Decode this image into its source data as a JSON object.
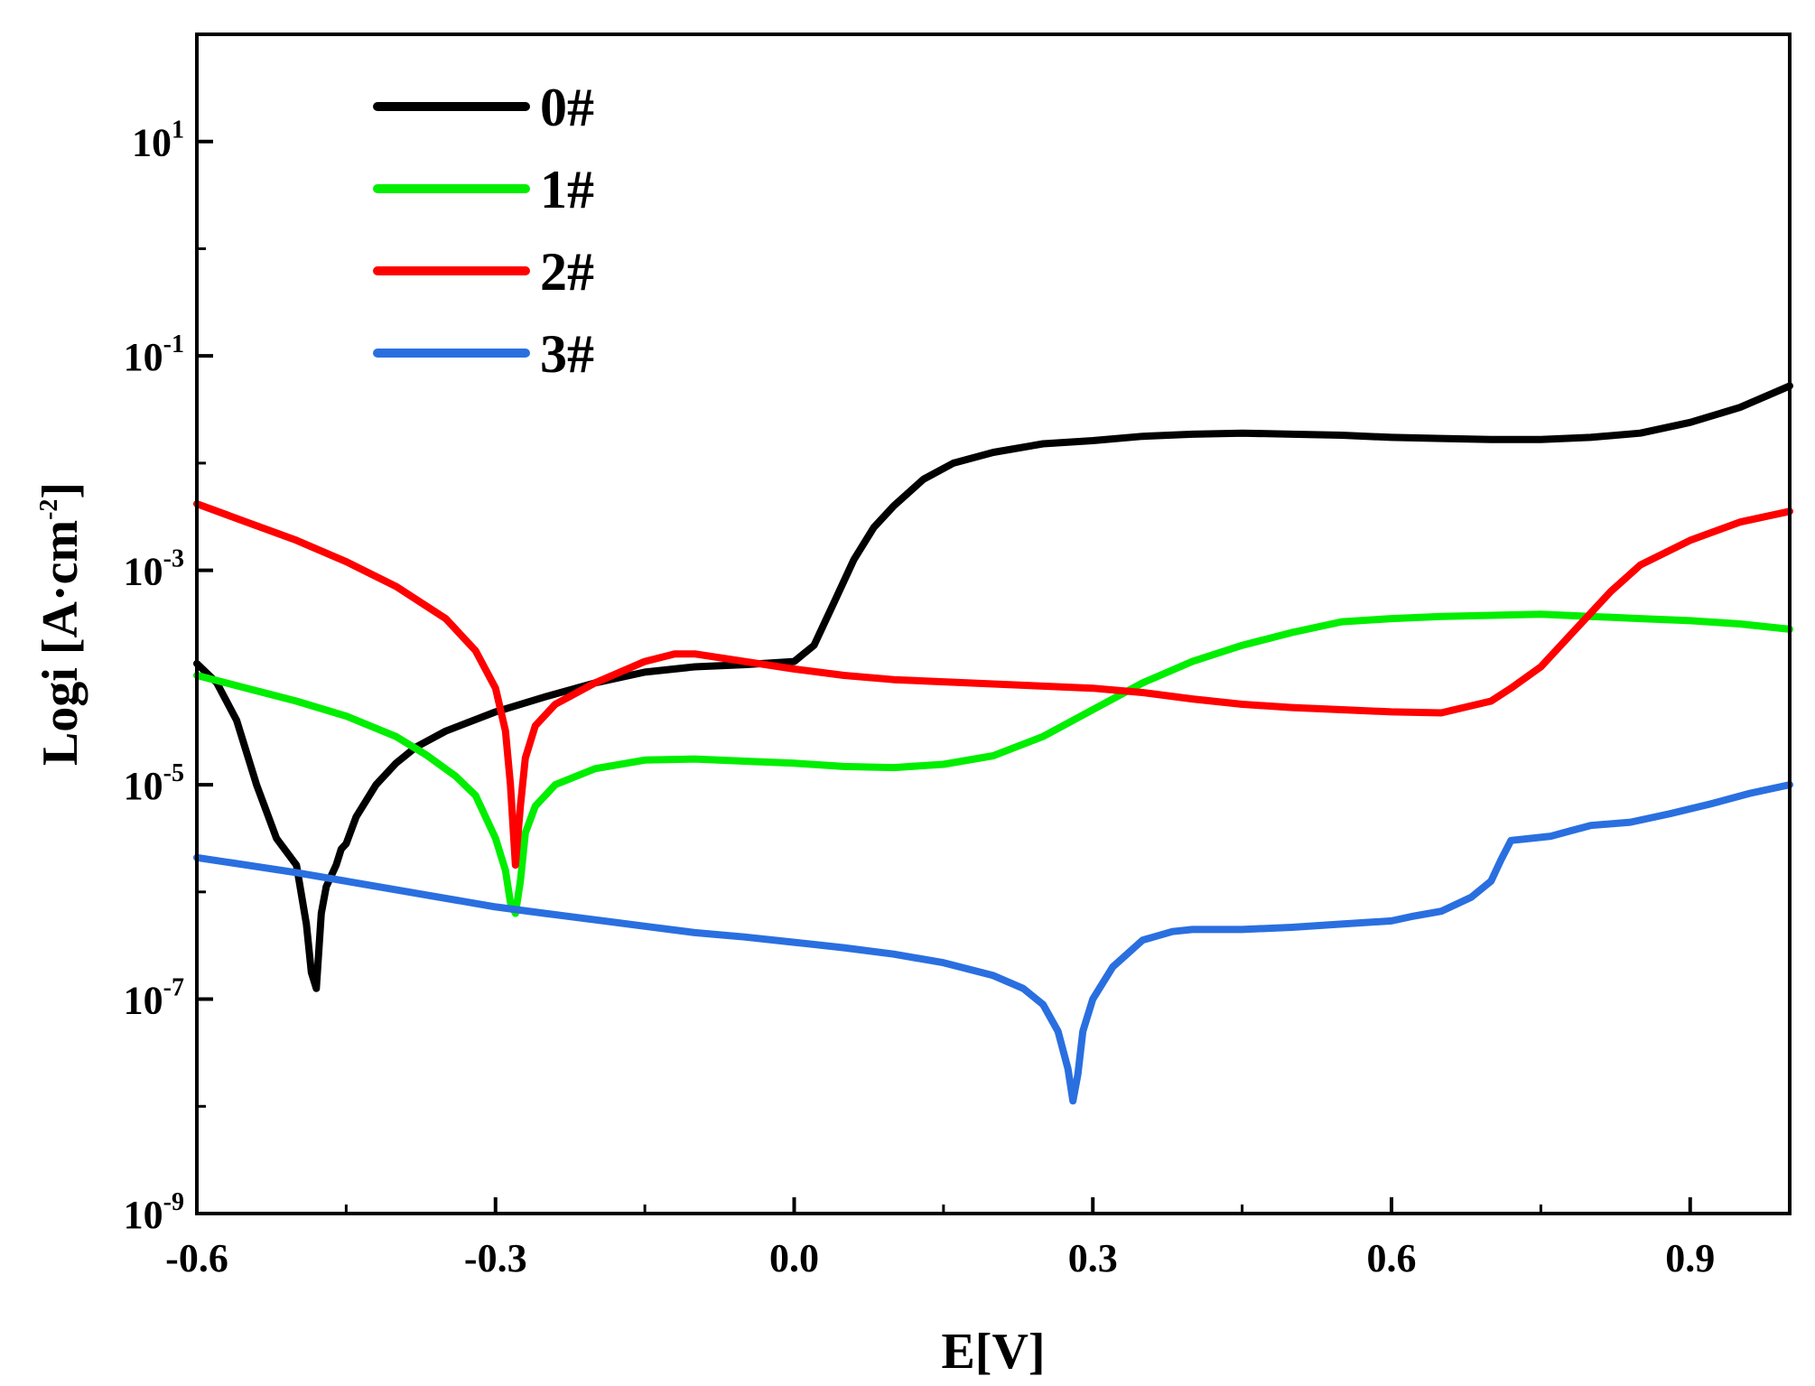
{
  "chart_data": {
    "type": "line",
    "title": "",
    "xlabel": "E[V]",
    "ylabel": "Logi [A·cm",
    "ylabel_exponent": "-2",
    "ylabel_suffix": "]",
    "xlim": [
      -0.6,
      1.0
    ],
    "ylim_log10": [
      -9,
      2
    ],
    "y_scale": "log",
    "grid": false,
    "legend_position": "top-left",
    "x_ticks": [
      {
        "value": -0.6,
        "label": "-0.6"
      },
      {
        "value": -0.3,
        "label": "-0.3"
      },
      {
        "value": 0.0,
        "label": "0.0"
      },
      {
        "value": 0.3,
        "label": "0.3"
      },
      {
        "value": 0.6,
        "label": "0.6"
      },
      {
        "value": 0.9,
        "label": "0.9"
      }
    ],
    "y_ticks": [
      {
        "exp": 1,
        "base": "10",
        "exponent": "1"
      },
      {
        "exp": -1,
        "base": "10",
        "exponent": "-1"
      },
      {
        "exp": -3,
        "base": "10",
        "exponent": "-3"
      },
      {
        "exp": -5,
        "base": "10",
        "exponent": "-5"
      },
      {
        "exp": -7,
        "base": "10",
        "exponent": "-7"
      },
      {
        "exp": -9,
        "base": "10",
        "exponent": "-9"
      }
    ],
    "series": [
      {
        "name": "0#",
        "color": "#000000",
        "points": [
          [
            -0.6,
            -3.87
          ],
          [
            -0.58,
            -4.05
          ],
          [
            -0.56,
            -4.4
          ],
          [
            -0.54,
            -5.0
          ],
          [
            -0.52,
            -5.5
          ],
          [
            -0.5,
            -5.75
          ],
          [
            -0.49,
            -6.3
          ],
          [
            -0.485,
            -6.75
          ],
          [
            -0.48,
            -6.9
          ],
          [
            -0.475,
            -6.2
          ],
          [
            -0.47,
            -5.95
          ],
          [
            -0.46,
            -5.75
          ],
          [
            -0.455,
            -5.6
          ],
          [
            -0.45,
            -5.55
          ],
          [
            -0.44,
            -5.3
          ],
          [
            -0.42,
            -5.0
          ],
          [
            -0.4,
            -4.8
          ],
          [
            -0.38,
            -4.65
          ],
          [
            -0.35,
            -4.5
          ],
          [
            -0.3,
            -4.32
          ],
          [
            -0.25,
            -4.18
          ],
          [
            -0.2,
            -4.05
          ],
          [
            -0.15,
            -3.95
          ],
          [
            -0.1,
            -3.9
          ],
          [
            -0.05,
            -3.88
          ],
          [
            0.0,
            -3.85
          ],
          [
            0.02,
            -3.7
          ],
          [
            0.04,
            -3.3
          ],
          [
            0.06,
            -2.9
          ],
          [
            0.08,
            -2.6
          ],
          [
            0.1,
            -2.4
          ],
          [
            0.13,
            -2.15
          ],
          [
            0.16,
            -2.0
          ],
          [
            0.2,
            -1.9
          ],
          [
            0.25,
            -1.82
          ],
          [
            0.3,
            -1.79
          ],
          [
            0.35,
            -1.75
          ],
          [
            0.4,
            -1.73
          ],
          [
            0.45,
            -1.72
          ],
          [
            0.5,
            -1.73
          ],
          [
            0.55,
            -1.74
          ],
          [
            0.6,
            -1.76
          ],
          [
            0.65,
            -1.77
          ],
          [
            0.7,
            -1.78
          ],
          [
            0.75,
            -1.78
          ],
          [
            0.8,
            -1.76
          ],
          [
            0.85,
            -1.72
          ],
          [
            0.9,
            -1.62
          ],
          [
            0.95,
            -1.48
          ],
          [
            1.0,
            -1.28
          ]
        ]
      },
      {
        "name": "1#",
        "color": "#00ee00",
        "points": [
          [
            -0.6,
            -3.98
          ],
          [
            -0.55,
            -4.1
          ],
          [
            -0.5,
            -4.22
          ],
          [
            -0.45,
            -4.36
          ],
          [
            -0.4,
            -4.55
          ],
          [
            -0.37,
            -4.72
          ],
          [
            -0.34,
            -4.92
          ],
          [
            -0.32,
            -5.1
          ],
          [
            -0.3,
            -5.5
          ],
          [
            -0.29,
            -5.8
          ],
          [
            -0.285,
            -6.1
          ],
          [
            -0.28,
            -6.2
          ],
          [
            -0.275,
            -5.9
          ],
          [
            -0.27,
            -5.45
          ],
          [
            -0.26,
            -5.2
          ],
          [
            -0.24,
            -5.0
          ],
          [
            -0.2,
            -4.85
          ],
          [
            -0.15,
            -4.77
          ],
          [
            -0.1,
            -4.76
          ],
          [
            -0.05,
            -4.78
          ],
          [
            0.0,
            -4.8
          ],
          [
            0.05,
            -4.83
          ],
          [
            0.1,
            -4.84
          ],
          [
            0.15,
            -4.81
          ],
          [
            0.2,
            -4.73
          ],
          [
            0.25,
            -4.55
          ],
          [
            0.3,
            -4.3
          ],
          [
            0.35,
            -4.05
          ],
          [
            0.4,
            -3.85
          ],
          [
            0.45,
            -3.7
          ],
          [
            0.5,
            -3.58
          ],
          [
            0.55,
            -3.48
          ],
          [
            0.6,
            -3.45
          ],
          [
            0.65,
            -3.43
          ],
          [
            0.7,
            -3.42
          ],
          [
            0.75,
            -3.41
          ],
          [
            0.8,
            -3.43
          ],
          [
            0.85,
            -3.45
          ],
          [
            0.9,
            -3.47
          ],
          [
            0.95,
            -3.5
          ],
          [
            1.0,
            -3.55
          ]
        ]
      },
      {
        "name": "2#",
        "color": "#ff0000",
        "points": [
          [
            -0.6,
            -2.38
          ],
          [
            -0.55,
            -2.55
          ],
          [
            -0.5,
            -2.72
          ],
          [
            -0.45,
            -2.92
          ],
          [
            -0.4,
            -3.15
          ],
          [
            -0.35,
            -3.45
          ],
          [
            -0.32,
            -3.75
          ],
          [
            -0.3,
            -4.1
          ],
          [
            -0.29,
            -4.5
          ],
          [
            -0.285,
            -5.0
          ],
          [
            -0.28,
            -5.75
          ],
          [
            -0.275,
            -5.2
          ],
          [
            -0.27,
            -4.75
          ],
          [
            -0.26,
            -4.45
          ],
          [
            -0.24,
            -4.25
          ],
          [
            -0.2,
            -4.05
          ],
          [
            -0.15,
            -3.85
          ],
          [
            -0.12,
            -3.78
          ],
          [
            -0.1,
            -3.78
          ],
          [
            -0.05,
            -3.85
          ],
          [
            0.0,
            -3.92
          ],
          [
            0.05,
            -3.98
          ],
          [
            0.1,
            -4.02
          ],
          [
            0.15,
            -4.04
          ],
          [
            0.2,
            -4.06
          ],
          [
            0.25,
            -4.08
          ],
          [
            0.3,
            -4.1
          ],
          [
            0.35,
            -4.14
          ],
          [
            0.4,
            -4.2
          ],
          [
            0.45,
            -4.25
          ],
          [
            0.5,
            -4.28
          ],
          [
            0.55,
            -4.3
          ],
          [
            0.6,
            -4.32
          ],
          [
            0.65,
            -4.33
          ],
          [
            0.7,
            -4.22
          ],
          [
            0.72,
            -4.1
          ],
          [
            0.75,
            -3.9
          ],
          [
            0.78,
            -3.6
          ],
          [
            0.8,
            -3.4
          ],
          [
            0.82,
            -3.2
          ],
          [
            0.85,
            -2.95
          ],
          [
            0.9,
            -2.72
          ],
          [
            0.95,
            -2.55
          ],
          [
            1.0,
            -2.45
          ]
        ]
      },
      {
        "name": "3#",
        "color": "#2a6fe0",
        "points": [
          [
            -0.6,
            -5.68
          ],
          [
            -0.55,
            -5.75
          ],
          [
            -0.5,
            -5.82
          ],
          [
            -0.45,
            -5.9
          ],
          [
            -0.4,
            -5.98
          ],
          [
            -0.35,
            -6.06
          ],
          [
            -0.3,
            -6.14
          ],
          [
            -0.25,
            -6.2
          ],
          [
            -0.2,
            -6.26
          ],
          [
            -0.15,
            -6.32
          ],
          [
            -0.1,
            -6.38
          ],
          [
            -0.05,
            -6.42
          ],
          [
            0.0,
            -6.47
          ],
          [
            0.05,
            -6.52
          ],
          [
            0.1,
            -6.58
          ],
          [
            0.15,
            -6.66
          ],
          [
            0.2,
            -6.78
          ],
          [
            0.23,
            -6.9
          ],
          [
            0.25,
            -7.05
          ],
          [
            0.265,
            -7.3
          ],
          [
            0.275,
            -7.65
          ],
          [
            0.28,
            -7.95
          ],
          [
            0.285,
            -7.7
          ],
          [
            0.29,
            -7.3
          ],
          [
            0.3,
            -7.0
          ],
          [
            0.32,
            -6.7
          ],
          [
            0.35,
            -6.45
          ],
          [
            0.38,
            -6.37
          ],
          [
            0.4,
            -6.35
          ],
          [
            0.45,
            -6.35
          ],
          [
            0.5,
            -6.33
          ],
          [
            0.55,
            -6.3
          ],
          [
            0.6,
            -6.27
          ],
          [
            0.62,
            -6.23
          ],
          [
            0.65,
            -6.18
          ],
          [
            0.68,
            -6.05
          ],
          [
            0.7,
            -5.9
          ],
          [
            0.71,
            -5.7
          ],
          [
            0.72,
            -5.52
          ],
          [
            0.74,
            -5.5
          ],
          [
            0.76,
            -5.48
          ],
          [
            0.78,
            -5.43
          ],
          [
            0.8,
            -5.38
          ],
          [
            0.84,
            -5.35
          ],
          [
            0.88,
            -5.27
          ],
          [
            0.92,
            -5.18
          ],
          [
            0.96,
            -5.08
          ],
          [
            1.0,
            -5.0
          ]
        ]
      }
    ]
  }
}
